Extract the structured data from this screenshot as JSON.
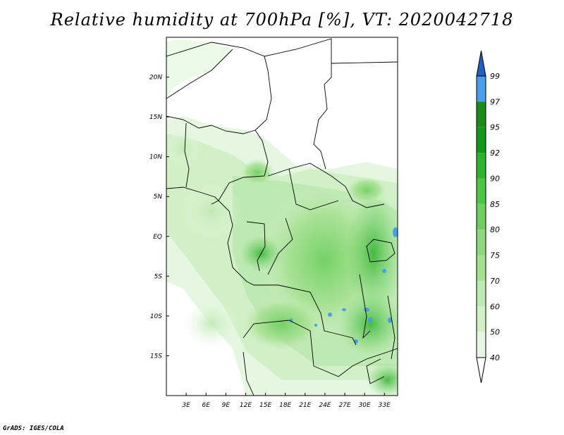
{
  "chart_data": {
    "type": "heatmap",
    "title": "Relative humidity at 700hPa [%], VT: 2020042718",
    "variable": "Relative humidity",
    "level": "700hPa",
    "units": "%",
    "valid_time": "2020042718",
    "credit": "GrADS: IGES/COLA",
    "x_axis": {
      "ticks": [
        3,
        6,
        9,
        12,
        15,
        18,
        21,
        24,
        27,
        30,
        33
      ],
      "labels": [
        "3E",
        "6E",
        "9E",
        "12E",
        "15E",
        "18E",
        "21E",
        "24E",
        "27E",
        "30E",
        "33E"
      ],
      "range": [
        0,
        35
      ]
    },
    "y_axis": {
      "ticks": [
        20,
        15,
        10,
        5,
        0,
        -5,
        -10,
        -15
      ],
      "labels": [
        "20N",
        "15N",
        "10N",
        "5N",
        "EQ",
        "5S",
        "10S",
        "15S"
      ],
      "range": [
        -20,
        25
      ]
    },
    "colorbar": {
      "levels": [
        "40",
        "50",
        "60",
        "70",
        "75",
        "80",
        "85",
        "90",
        "92",
        "95",
        "97",
        "99"
      ],
      "colors": [
        "#ffffff",
        "#e6f7e1",
        "#d2f0c8",
        "#bde9b2",
        "#a5e08f",
        "#8dd87a",
        "#6ccf5f",
        "#4cc444",
        "#2fb22d",
        "#14961a",
        "#1a8a1a",
        "#4a9ee8",
        "#1e6fd6",
        "#1f5fc0"
      ],
      "under_color": "#ffffff",
      "over_color": "#1f5fc0",
      "orientation": "vertical",
      "position": "right"
    },
    "description": "Moist green band across equatorial Central Africa (Congo Basin, Great Lakes, Angola-Zambia); drier white over Sahel/Sahara north of 12N and offshore southwest; isolated blue pockets (>95%) near Lake Victoria and Lake Malawi region."
  }
}
